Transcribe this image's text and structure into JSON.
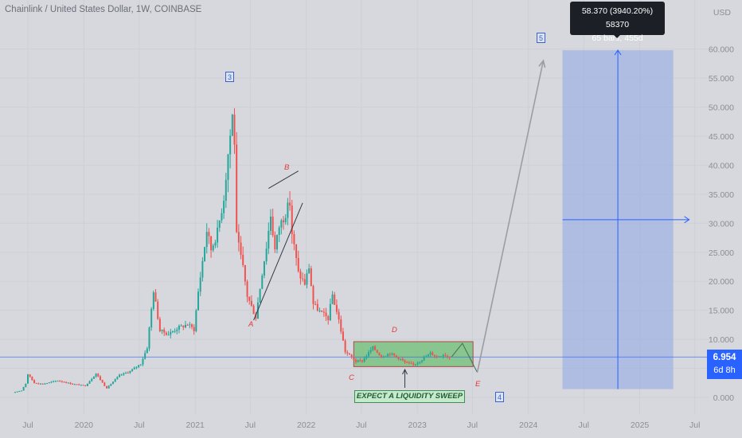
{
  "header": {
    "title": "Chainlink / United States Dollar, 1W, COINBASE",
    "currency": "USD"
  },
  "measure_tooltip": {
    "line1": "58.370 (3940.20%) 58370",
    "line2": "65 bars, 455d"
  },
  "current_price": {
    "value": "6.954",
    "countdown": "6d 8h"
  },
  "annotations": {
    "sweep_text": "EXPECT A LIQUIDITY SWEEP",
    "wave_3": "3",
    "wave_4": "4",
    "wave_5": "5",
    "A": "A",
    "B": "B",
    "C": "C",
    "D": "D",
    "E": "E"
  },
  "colors": {
    "background": "#d6d8dd",
    "up": "#26a69a",
    "down": "#ef5350",
    "projection": "#8fa8e8",
    "accent": "#2962ff",
    "range_box": "#6fbf73"
  },
  "chart_data": {
    "type": "candlestick",
    "title": "Chainlink / United States Dollar, 1W, COINBASE",
    "interval": "1W",
    "y_axis": {
      "position": "right",
      "range": [
        0,
        60
      ],
      "ticks": [
        "60.000",
        "55.000",
        "50.000",
        "45.000",
        "40.000",
        "35.000",
        "30.000",
        "25.000",
        "20.000",
        "15.000",
        "10.000",
        "5.000",
        "0.000"
      ],
      "tick_values": [
        60,
        55,
        50,
        45,
        40,
        35,
        30,
        25,
        20,
        15,
        10,
        5,
        0
      ]
    },
    "x_axis": {
      "ticks": [
        "Jul",
        "2020",
        "Jul",
        "2021",
        "Jul",
        "2022",
        "Jul",
        "2023",
        "Jul",
        "2024",
        "Jul",
        "2025",
        "Jul"
      ],
      "tick_dates": [
        "2019-07-01",
        "2020-01-01",
        "2020-07-01",
        "2021-01-01",
        "2021-07-01",
        "2022-01-01",
        "2022-07-01",
        "2023-01-01",
        "2023-07-01",
        "2024-01-01",
        "2024-07-01",
        "2025-01-01",
        "2025-07-01"
      ]
    },
    "price_path": [
      [
        "2019-05-20",
        0.9
      ],
      [
        "2019-06-10",
        1.2
      ],
      [
        "2019-06-24",
        2.4
      ],
      [
        "2019-07-01",
        4.0
      ],
      [
        "2019-07-22",
        2.5
      ],
      [
        "2019-08-19",
        2.3
      ],
      [
        "2019-10-07",
        2.9
      ],
      [
        "2019-11-25",
        2.3
      ],
      [
        "2020-01-06",
        2.0
      ],
      [
        "2020-02-10",
        4.1
      ],
      [
        "2020-03-09",
        2.0
      ],
      [
        "2020-03-16",
        1.6
      ],
      [
        "2020-04-27",
        3.8
      ],
      [
        "2020-06-01",
        4.5
      ],
      [
        "2020-07-06",
        5.8
      ],
      [
        "2020-07-27",
        8.6
      ],
      [
        "2020-08-10",
        15.2
      ],
      [
        "2020-08-17",
        18.5
      ],
      [
        "2020-09-07",
        11.5
      ],
      [
        "2020-10-05",
        10.9
      ],
      [
        "2020-11-02",
        11.9
      ],
      [
        "2020-12-07",
        12.6
      ],
      [
        "2020-12-28",
        11.7
      ],
      [
        "2021-01-11",
        18.2
      ],
      [
        "2021-02-08",
        28.8
      ],
      [
        "2021-02-22",
        25.5
      ],
      [
        "2021-03-15",
        28.5
      ],
      [
        "2021-04-05",
        34.5
      ],
      [
        "2021-04-19",
        42.0
      ],
      [
        "2021-05-03",
        48.5
      ],
      [
        "2021-05-10",
        44.2
      ],
      [
        "2021-05-17",
        27.8
      ],
      [
        "2021-06-07",
        22.3
      ],
      [
        "2021-06-21",
        17.5
      ],
      [
        "2021-07-19",
        13.8
      ],
      [
        "2021-08-09",
        21.5
      ],
      [
        "2021-08-23",
        26.0
      ],
      [
        "2021-09-06",
        31.5
      ],
      [
        "2021-09-20",
        25.4
      ],
      [
        "2021-10-04",
        29.5
      ],
      [
        "2021-10-18",
        31.0
      ],
      [
        "2021-11-08",
        33.5
      ],
      [
        "2021-11-15",
        28.3
      ],
      [
        "2021-12-06",
        21.4
      ],
      [
        "2021-12-27",
        19.6
      ],
      [
        "2022-01-10",
        22.5
      ],
      [
        "2022-01-24",
        16.1
      ],
      [
        "2022-02-14",
        14.8
      ],
      [
        "2022-03-14",
        13.6
      ],
      [
        "2022-03-28",
        17.7
      ],
      [
        "2022-04-18",
        13.3
      ],
      [
        "2022-05-09",
        7.9
      ],
      [
        "2022-06-13",
        6.2
      ],
      [
        "2022-07-04",
        6.3
      ],
      [
        "2022-08-08",
        8.6
      ],
      [
        "2022-09-05",
        7.0
      ],
      [
        "2022-10-03",
        7.6
      ],
      [
        "2022-11-07",
        6.6
      ],
      [
        "2022-11-21",
        6.0
      ],
      [
        "2022-12-19",
        5.6
      ],
      [
        "2023-01-09",
        6.3
      ],
      [
        "2023-02-13",
        7.6
      ],
      [
        "2023-03-06",
        7.0
      ],
      [
        "2023-03-27",
        7.4
      ],
      [
        "2023-04-17",
        6.954
      ]
    ],
    "current_price": 6.954,
    "projection": {
      "range_box": {
        "from": "2022-06-06",
        "to": "2023-07-03",
        "top": 9.6,
        "bottom": 5.3
      },
      "zigzag": [
        [
          "2023-04-24",
          7.0
        ],
        [
          "2023-05-29",
          9.3
        ],
        [
          "2023-07-17",
          4.3
        ]
      ],
      "target": [
        "2024-02-19",
        58.0
      ],
      "measure_box": {
        "from": "2024-04-22",
        "to": "2025-04-21",
        "top": 59.8,
        "bottom": 1.43
      }
    },
    "wave_labels": [
      {
        "label": "3",
        "date": "2021-05-03",
        "value": 54.5
      },
      {
        "label": "A",
        "date": "2021-07-12",
        "value": 12.0
      },
      {
        "label": "B",
        "date": "2021-11-15",
        "value": 39.0
      },
      {
        "label": "C",
        "date": "2022-06-13",
        "value": 3.4
      },
      {
        "label": "D",
        "date": "2022-11-14",
        "value": 11.5
      },
      {
        "label": "E",
        "date": "2023-07-10",
        "value": 2.0
      },
      {
        "label": "4",
        "date": "2023-07-10",
        "value": 0.0
      },
      {
        "label": "5",
        "date": "2024-01-29",
        "value": 61.5
      }
    ]
  }
}
